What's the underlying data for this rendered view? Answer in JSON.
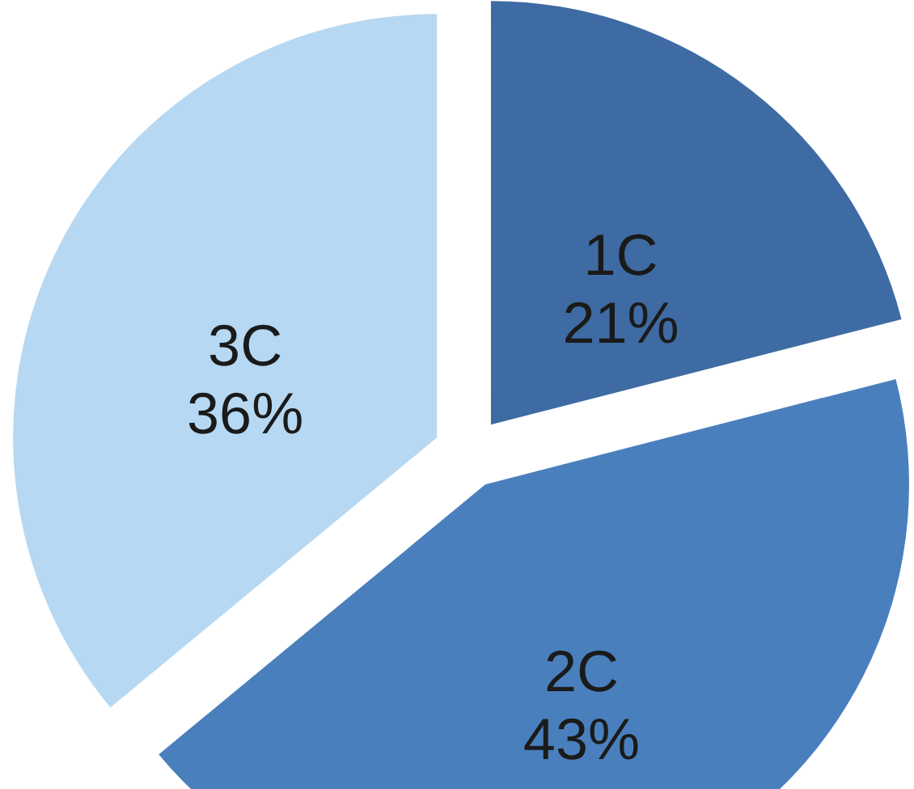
{
  "chart_data": {
    "type": "pie",
    "categories": [
      "1C",
      "2C",
      "3C"
    ],
    "values": [
      21,
      43,
      36
    ],
    "value_labels": [
      "21%",
      "43%",
      "36%"
    ],
    "colors": [
      "#3e6ba3",
      "#4a7fbd",
      "#b6d8f2"
    ],
    "legend": false
  }
}
